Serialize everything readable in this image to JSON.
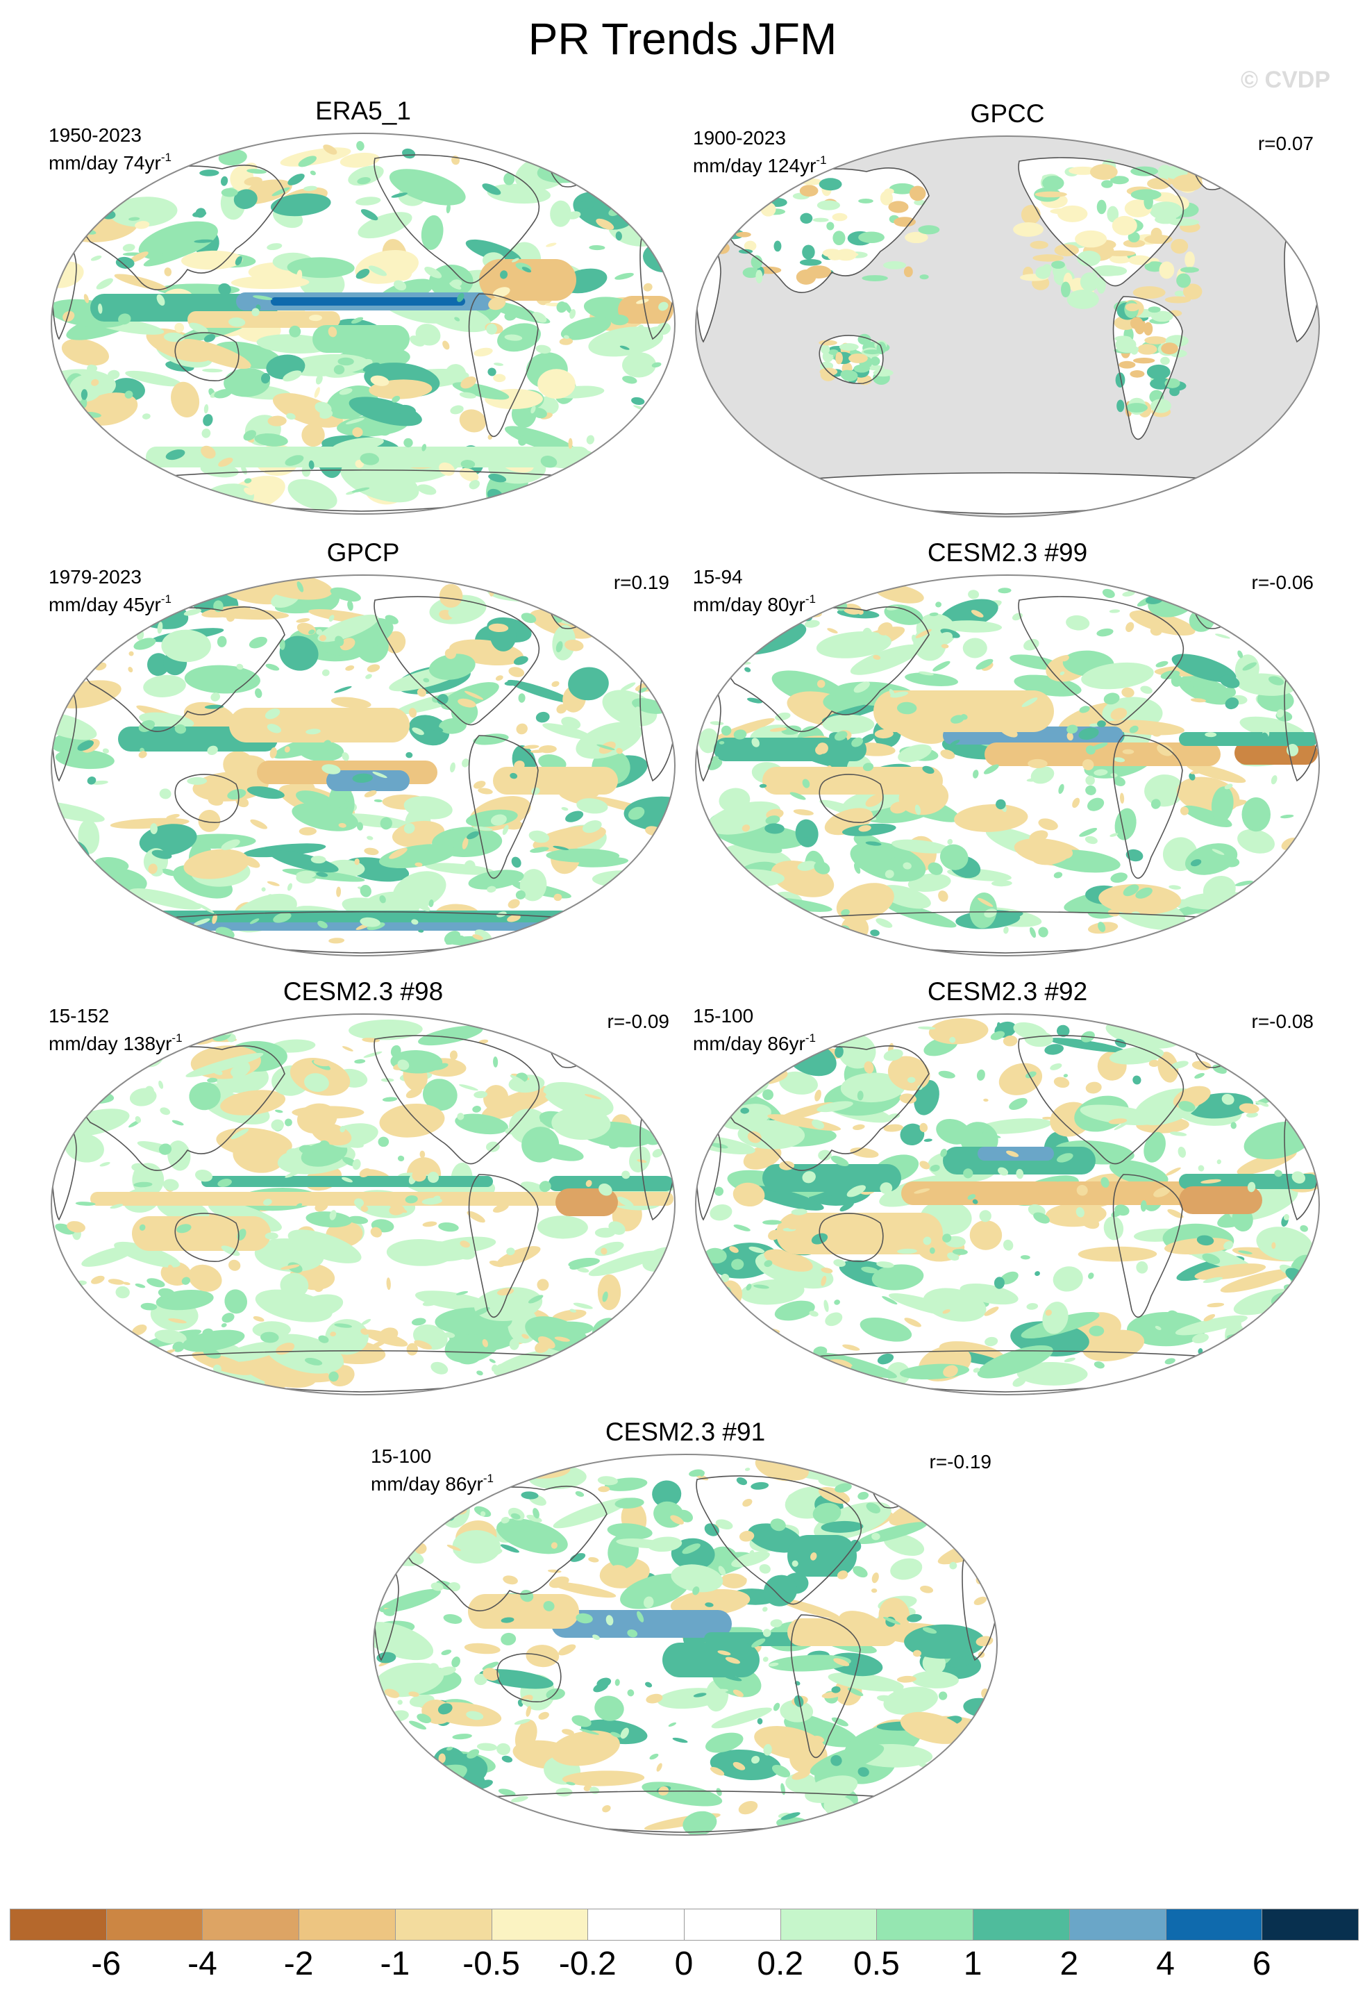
{
  "figure": {
    "title": "PR Trends JFM",
    "watermark": "© CVDP"
  },
  "panels": [
    {
      "title": "ERA5_1",
      "period": "1950-2023",
      "units_prefix": "mm/day 74yr",
      "units_exp": "-1",
      "correlation": "",
      "style": "era5"
    },
    {
      "title": "GPCC",
      "period": "1900-2023",
      "units_prefix": "mm/day 124yr",
      "units_exp": "-1",
      "correlation": "r=0.07",
      "style": "land"
    },
    {
      "title": "GPCP",
      "period": "1979-2023",
      "units_prefix": "mm/day 45yr",
      "units_exp": "-1",
      "correlation": "r=0.19",
      "style": "gpcp"
    },
    {
      "title": "CESM2.3 #99",
      "period": "15-94",
      "units_prefix": "mm/day 80yr",
      "units_exp": "-1",
      "correlation": "r=-0.06",
      "style": "model_a"
    },
    {
      "title": "CESM2.3 #98",
      "period": "15-152",
      "units_prefix": "mm/day 138yr",
      "units_exp": "-1",
      "correlation": "r=-0.09",
      "style": "model_b"
    },
    {
      "title": "CESM2.3 #92",
      "period": "15-100",
      "units_prefix": "mm/day 86yr",
      "units_exp": "-1",
      "correlation": "r=-0.08",
      "style": "model_c"
    },
    {
      "title": "CESM2.3 #91",
      "period": "15-100",
      "units_prefix": "mm/day 86yr",
      "units_exp": "-1",
      "correlation": "r=-0.19",
      "style": "model_d"
    }
  ],
  "colorbar": {
    "labels": [
      "-6",
      "-4",
      "-2",
      "-1",
      "-0.5",
      "-0.2",
      "0",
      "0.2",
      "0.5",
      "1",
      "2",
      "4",
      "6"
    ],
    "colors": [
      "#b5682c",
      "#cc8643",
      "#dda464",
      "#edc581",
      "#f3dc9e",
      "#fbf3c2",
      "#ffffff",
      "#ffffff",
      "#c6f6cb",
      "#95e6b1",
      "#4fbc9c",
      "#6aa6c8",
      "#0f6aad",
      "#08304f"
    ]
  },
  "colors": {
    "ocean_missing": "#e0e0e0",
    "coastline": "#555555",
    "map_border": "#8a8a8a"
  }
}
